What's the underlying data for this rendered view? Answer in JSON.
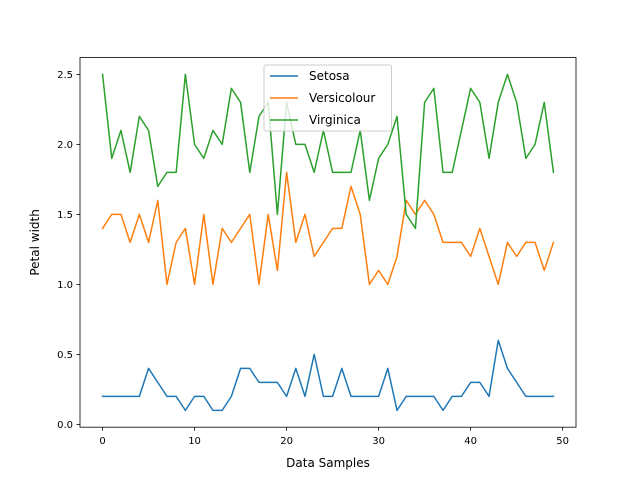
{
  "chart_data": {
    "type": "line",
    "title": "",
    "xlabel": "Data Samples",
    "ylabel": "Petal width",
    "xlim": [
      -2.45,
      51.45
    ],
    "ylim": [
      -0.02,
      2.62
    ],
    "xticks": [
      0,
      10,
      20,
      30,
      40,
      50
    ],
    "xtick_labels": [
      "0",
      "10",
      "20",
      "30",
      "40",
      "50"
    ],
    "yticks": [
      0.0,
      0.5,
      1.0,
      1.5,
      2.0,
      2.5
    ],
    "ytick_labels": [
      "0.0",
      "0.5",
      "1.0",
      "1.5",
      "2.0",
      "2.5"
    ],
    "grid": false,
    "legend_position": "top-center",
    "x": [
      0,
      1,
      2,
      3,
      4,
      5,
      6,
      7,
      8,
      9,
      10,
      11,
      12,
      13,
      14,
      15,
      16,
      17,
      18,
      19,
      20,
      21,
      22,
      23,
      24,
      25,
      26,
      27,
      28,
      29,
      30,
      31,
      32,
      33,
      34,
      35,
      36,
      37,
      38,
      39,
      40,
      41,
      42,
      43,
      44,
      45,
      46,
      47,
      48,
      49
    ],
    "series": [
      {
        "name": "Setosa",
        "color": "#1f77b4",
        "values": [
          0.2,
          0.2,
          0.2,
          0.2,
          0.2,
          0.4,
          0.3,
          0.2,
          0.2,
          0.1,
          0.2,
          0.2,
          0.1,
          0.1,
          0.2,
          0.4,
          0.4,
          0.3,
          0.3,
          0.3,
          0.2,
          0.4,
          0.2,
          0.5,
          0.2,
          0.2,
          0.4,
          0.2,
          0.2,
          0.2,
          0.2,
          0.4,
          0.1,
          0.2,
          0.2,
          0.2,
          0.2,
          0.1,
          0.2,
          0.2,
          0.3,
          0.3,
          0.2,
          0.6,
          0.4,
          0.3,
          0.2,
          0.2,
          0.2,
          0.2
        ]
      },
      {
        "name": "Versicolour",
        "color": "#ff7f0e",
        "values": [
          1.4,
          1.5,
          1.5,
          1.3,
          1.5,
          1.3,
          1.6,
          1.0,
          1.3,
          1.4,
          1.0,
          1.5,
          1.0,
          1.4,
          1.3,
          1.4,
          1.5,
          1.0,
          1.5,
          1.1,
          1.8,
          1.3,
          1.5,
          1.2,
          1.3,
          1.4,
          1.4,
          1.7,
          1.5,
          1.0,
          1.1,
          1.0,
          1.2,
          1.6,
          1.5,
          1.6,
          1.5,
          1.3,
          1.3,
          1.3,
          1.2,
          1.4,
          1.2,
          1.0,
          1.3,
          1.2,
          1.3,
          1.3,
          1.1,
          1.3
        ]
      },
      {
        "name": "Virginica",
        "color": "#2ca02c",
        "values": [
          2.5,
          1.9,
          2.1,
          1.8,
          2.2,
          2.1,
          1.7,
          1.8,
          1.8,
          2.5,
          2.0,
          1.9,
          2.1,
          2.0,
          2.4,
          2.3,
          1.8,
          2.2,
          2.3,
          1.5,
          2.3,
          2.0,
          2.0,
          1.8,
          2.1,
          1.8,
          1.8,
          1.8,
          2.1,
          1.6,
          1.9,
          2.0,
          2.2,
          1.5,
          1.4,
          2.3,
          2.4,
          1.8,
          1.8,
          2.1,
          2.4,
          2.3,
          1.9,
          2.3,
          2.5,
          2.3,
          1.9,
          2.0,
          2.3,
          1.8
        ]
      }
    ]
  }
}
